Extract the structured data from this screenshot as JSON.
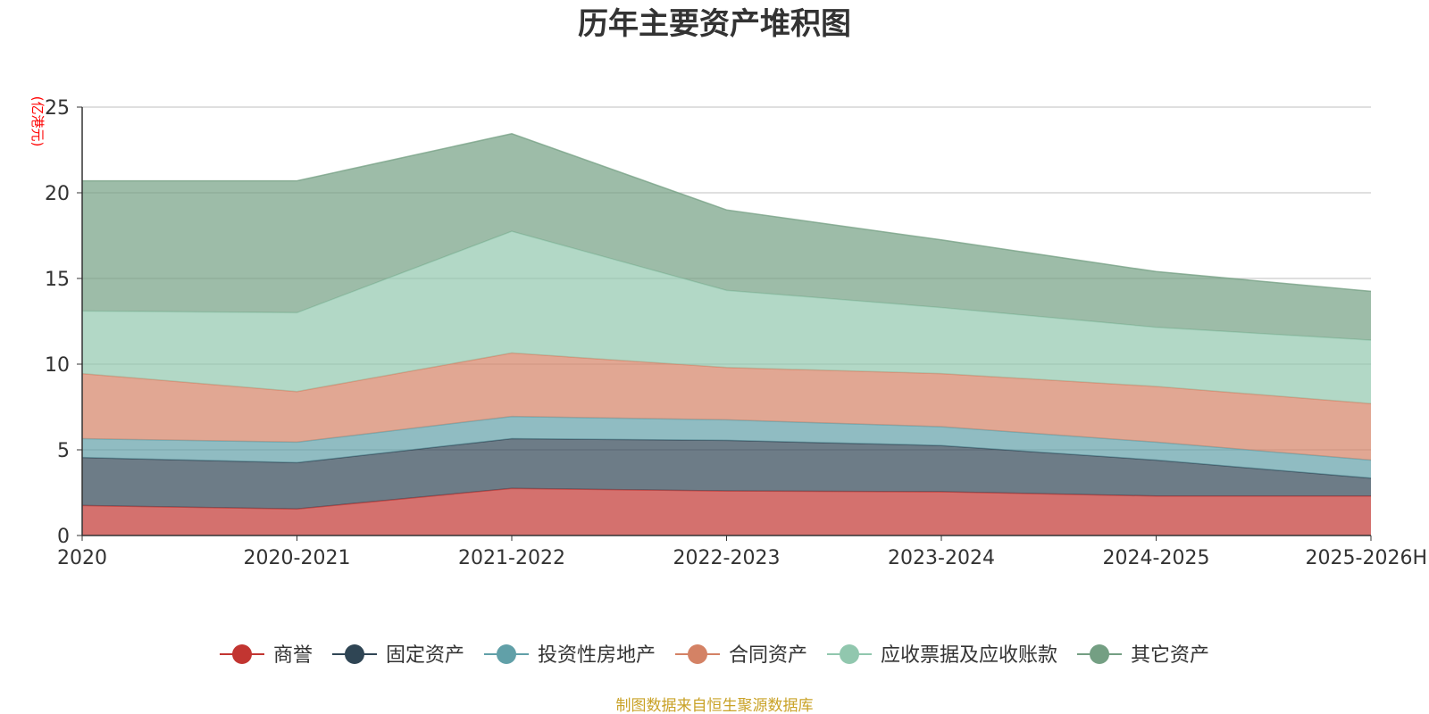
{
  "chart_data": {
    "type": "area",
    "stacked": true,
    "title": "历年主要资产堆积图",
    "ylabel": "(亿港元)",
    "categories": [
      "2020",
      "2020-2021",
      "2021-2022",
      "2022-2023",
      "2023-2024",
      "2024-2025",
      "2025-2026H"
    ],
    "ylim": [
      0,
      25
    ],
    "yticks": [
      0,
      5,
      10,
      15,
      20,
      25
    ],
    "grid": true,
    "legend_position": "bottom",
    "series": [
      {
        "name": "商誉",
        "color": "#c23531",
        "values": [
          1.75,
          1.55,
          2.75,
          2.6,
          2.55,
          2.3,
          2.3
        ]
      },
      {
        "name": "固定资产",
        "color": "#2f4554",
        "values": [
          2.8,
          2.7,
          2.9,
          2.95,
          2.7,
          2.1,
          1.05
        ]
      },
      {
        "name": "投资性房地产",
        "color": "#61a0a8",
        "values": [
          1.1,
          1.2,
          1.3,
          1.2,
          1.1,
          1.05,
          1.05
        ]
      },
      {
        "name": "合同资产",
        "color": "#d48265",
        "values": [
          3.8,
          2.95,
          3.7,
          3.05,
          3.1,
          3.25,
          3.3
        ]
      },
      {
        "name": "应收票据及应收账款",
        "color": "#91c7ae",
        "values": [
          3.65,
          4.6,
          7.1,
          4.5,
          3.85,
          3.45,
          3.7
        ]
      },
      {
        "name": "其它资产",
        "color": "#749f83",
        "values": [
          7.6,
          7.7,
          5.7,
          4.7,
          3.95,
          3.25,
          2.85
        ]
      }
    ]
  },
  "source_note": "制图数据来自恒生聚源数据库",
  "colors": {
    "title": "#333333",
    "unit_label": "#ff0000",
    "source_note": "#c9a227",
    "grid": "#cccccc",
    "axis": "#333333"
  }
}
